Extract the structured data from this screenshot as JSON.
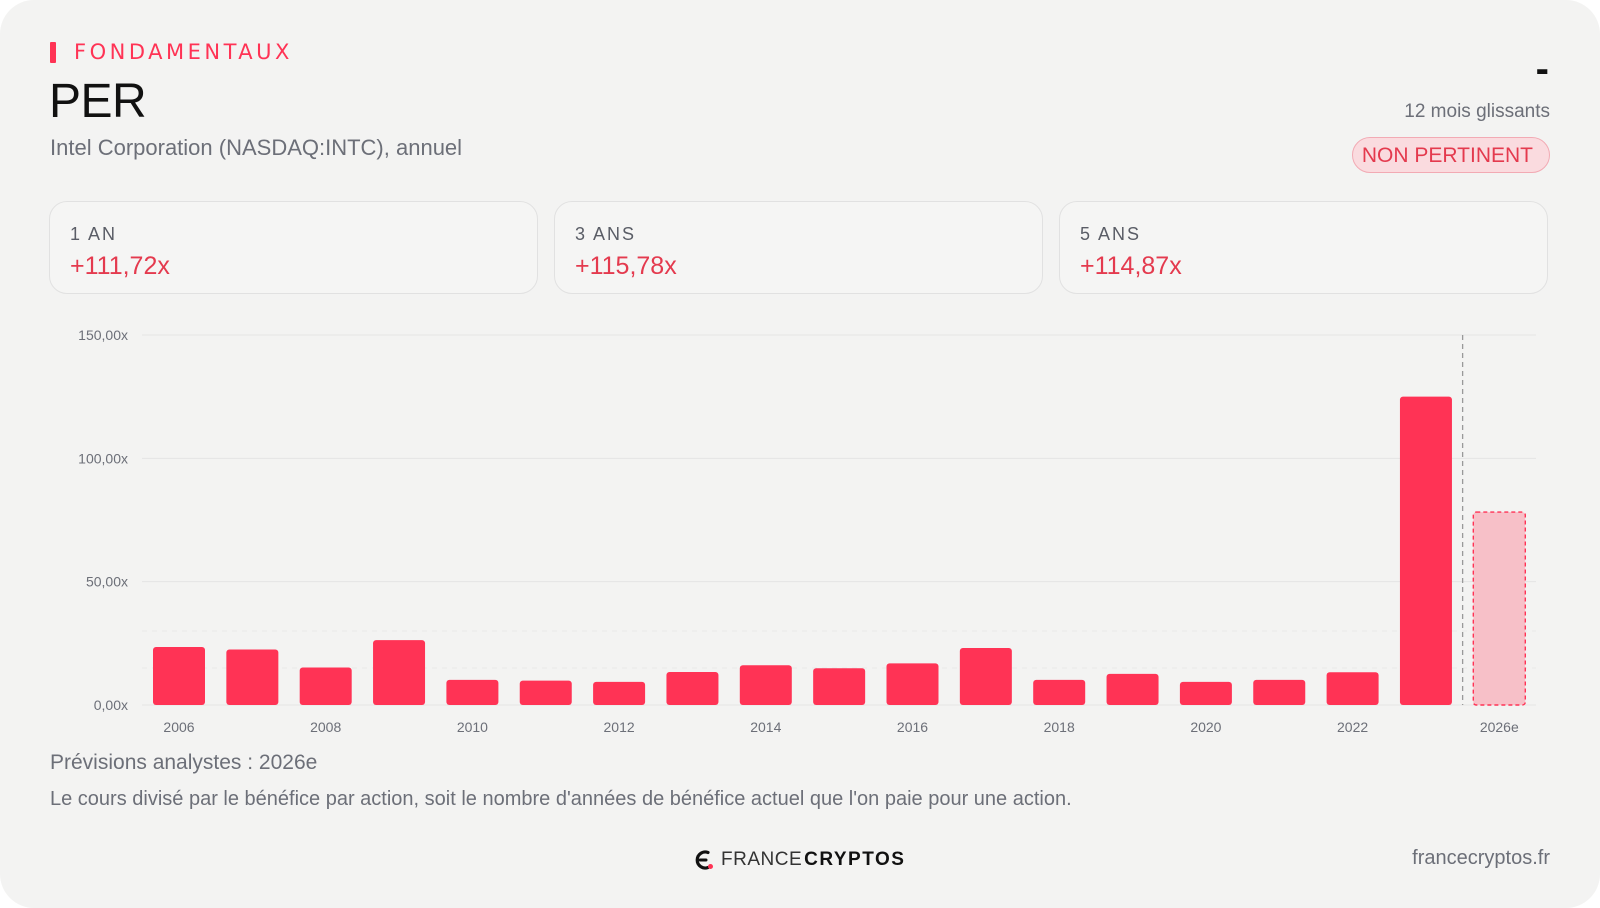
{
  "header": {
    "section": "FONDAMENTAUX",
    "title": "PER",
    "subtitle": "Intel Corporation (NASDAQ:INTC), annuel",
    "current_value": "-",
    "period": "12 mois glissants",
    "badge": "NON PERTINENT"
  },
  "stats": [
    {
      "label": "1 AN",
      "value": "+111,72x"
    },
    {
      "label": "3 ANS",
      "value": "+115,78x"
    },
    {
      "label": "5 ANS",
      "value": "+114,87x"
    }
  ],
  "chart_data": {
    "type": "bar",
    "categories": [
      "2006",
      "2007",
      "2008",
      "2009",
      "2010",
      "2011",
      "2012",
      "2013",
      "2014",
      "2015",
      "2016",
      "2017",
      "2018",
      "2019",
      "2020",
      "2021",
      "2022",
      "2023",
      "2026e"
    ],
    "tick_labels": [
      "2006",
      "2008",
      "2010",
      "2012",
      "2014",
      "2016",
      "2018",
      "2020",
      "2022",
      "2026e"
    ],
    "values": [
      23.5,
      22.5,
      15.2,
      26.3,
      10.2,
      9.9,
      9.4,
      13.4,
      16.1,
      14.9,
      16.9,
      23.1,
      10.2,
      12.6,
      9.4,
      10.2,
      13.3,
      125.0,
      78.2
    ],
    "forecast": [
      false,
      false,
      false,
      false,
      false,
      false,
      false,
      false,
      false,
      false,
      false,
      false,
      false,
      false,
      false,
      false,
      false,
      false,
      true
    ],
    "y_ticks": [
      "0,00x",
      "50,00x",
      "100,00x",
      "150,00x"
    ],
    "ylim": [
      0,
      150
    ],
    "grid": true,
    "colors": {
      "bar": "#ff3355",
      "forecast_fill": "#f7c0c8",
      "forecast_stroke": "#ff3355",
      "grid": "#e4e4e4",
      "divider": "#999999"
    }
  },
  "footer": {
    "forecast_note": "Prévisions analystes : 2026e",
    "description": "Le cours divisé par le bénéfice par action, soit le nombre d'années de bénéfice actuel que l'on paie pour une action.",
    "logo_light": "FRANCE",
    "logo_bold": "CRYPTOS",
    "site": "francecryptos.fr"
  }
}
